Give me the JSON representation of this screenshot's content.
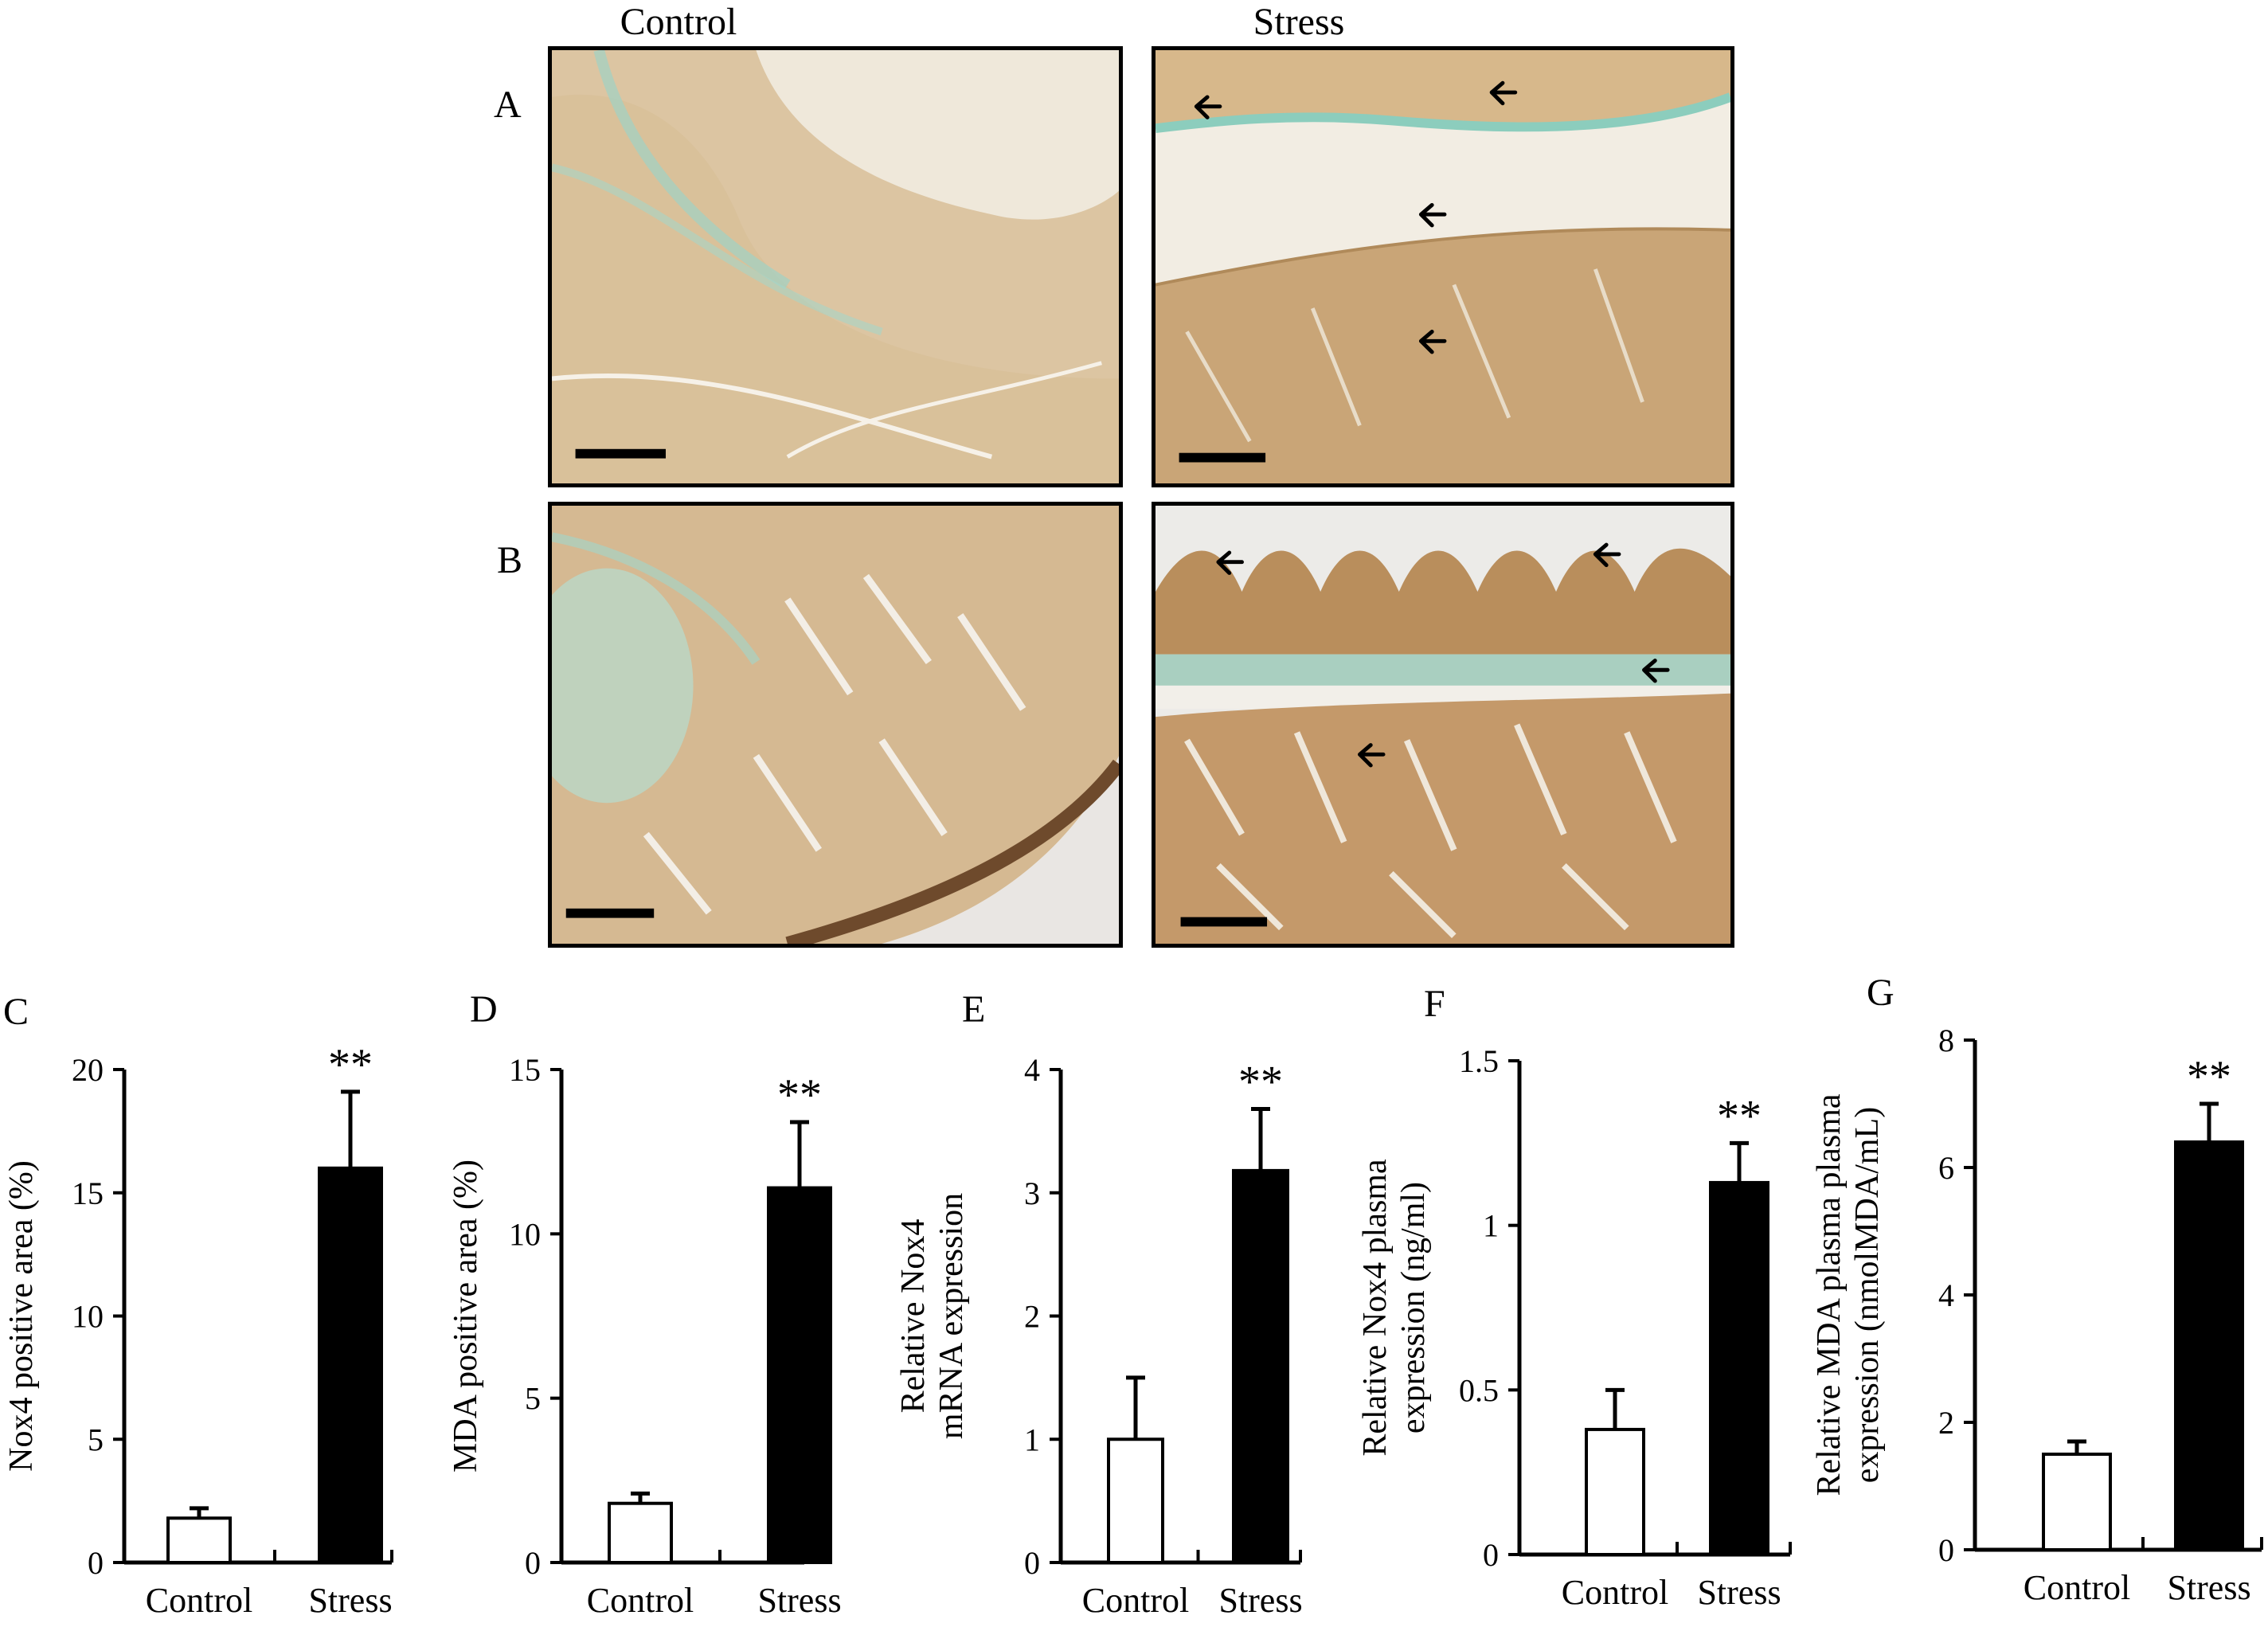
{
  "figure": {
    "column_headers": [
      "Control",
      "Stress"
    ],
    "row_labels": [
      "A",
      "B"
    ],
    "panel_labels": [
      "C",
      "D",
      "E",
      "F",
      "G"
    ]
  },
  "micrographs": [
    {
      "row": "A",
      "group": "Control",
      "stain_color": "#d9bf98",
      "arrows": 0
    },
    {
      "row": "A",
      "group": "Stress",
      "stain_color": "#c9a577",
      "arrows": 4
    },
    {
      "row": "B",
      "group": "Control",
      "stain_color": "#d2b68e",
      "arrows": 0
    },
    {
      "row": "B",
      "group": "Stress",
      "stain_color": "#b98e5c",
      "arrows": 4
    }
  ],
  "chart_data": [
    {
      "type": "bar",
      "panel": "C",
      "categories": [
        "Control",
        "Stress"
      ],
      "values": [
        1.8,
        16.0
      ],
      "errors": [
        0.4,
        3.1
      ],
      "fills": [
        "#ffffff",
        "#000000"
      ],
      "significance": [
        "",
        "**"
      ],
      "ylabel": [
        "Nox4 positive  area (%)"
      ],
      "ylim": [
        0,
        20
      ],
      "yticks": [
        "0",
        "5",
        "10",
        "15",
        "20"
      ],
      "ytick_values": [
        0,
        5,
        10,
        15,
        20
      ]
    },
    {
      "type": "bar",
      "panel": "D",
      "categories": [
        "Control",
        "Stress"
      ],
      "values": [
        1.8,
        11.4
      ],
      "errors": [
        0.3,
        2.0
      ],
      "fills": [
        "#ffffff",
        "#000000"
      ],
      "significance": [
        "",
        "**"
      ],
      "ylabel": [
        "MDA positive  area (%)"
      ],
      "ylim": [
        0,
        15
      ],
      "yticks": [
        "0",
        "5",
        "10",
        "15"
      ],
      "ytick_values": [
        0,
        5,
        10,
        15
      ]
    },
    {
      "type": "bar",
      "panel": "E",
      "categories": [
        "Control",
        "Stress"
      ],
      "values": [
        1.0,
        3.18
      ],
      "errors": [
        0.5,
        0.5
      ],
      "fills": [
        "#ffffff",
        "#000000"
      ],
      "significance": [
        "",
        "**"
      ],
      "ylabel": [
        "Relative Nox4",
        "mRNA  expression"
      ],
      "ylim": [
        0,
        4
      ],
      "yticks": [
        "0",
        "1",
        "2",
        "3",
        "4"
      ],
      "ytick_values": [
        0,
        1,
        2,
        3,
        4
      ]
    },
    {
      "type": "bar",
      "panel": "F",
      "categories": [
        "Control",
        "Stress"
      ],
      "values": [
        0.38,
        1.13
      ],
      "errors": [
        0.12,
        0.12
      ],
      "fills": [
        "#ffffff",
        "#000000"
      ],
      "significance": [
        "",
        "**"
      ],
      "ylabel": [
        "Relative Nox4 plasma",
        "expression (ng/ml)"
      ],
      "ylim": [
        0,
        1.5
      ],
      "yticks": [
        "0",
        "0.5",
        "1",
        "1.5"
      ],
      "ytick_values": [
        0,
        0.5,
        1,
        1.5
      ]
    },
    {
      "type": "bar",
      "panel": "G",
      "categories": [
        "Control",
        "Stress"
      ],
      "values": [
        1.5,
        6.4
      ],
      "errors": [
        0.2,
        0.6
      ],
      "fills": [
        "#ffffff",
        "#000000"
      ],
      "significance": [
        "",
        "**"
      ],
      "ylabel": [
        "Relative MDA plasma plasma",
        "expression (nmolMDA/mL)"
      ],
      "ylim": [
        0,
        8
      ],
      "yticks": [
        "0",
        "2",
        "4",
        "6",
        "8"
      ],
      "ytick_values": [
        0,
        2,
        4,
        6,
        8
      ]
    }
  ]
}
